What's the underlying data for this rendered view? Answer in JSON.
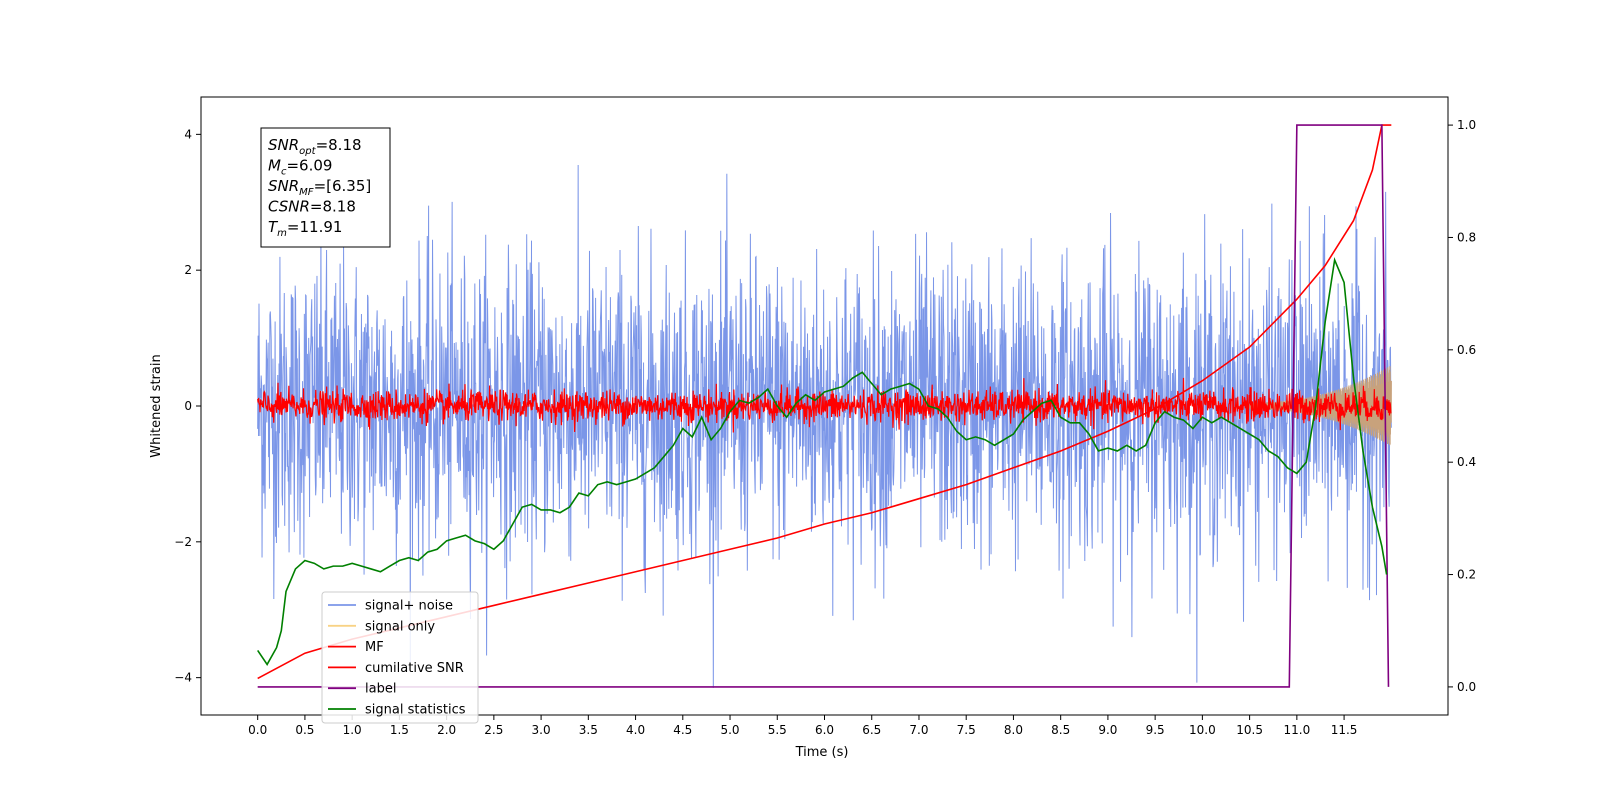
{
  "chart_data": {
    "type": "line",
    "title": "",
    "xlabel": "Time (s)",
    "ylabel": "Whitened strain",
    "xlim": [
      -0.6,
      12.6
    ],
    "ylim": [
      -4.55,
      4.55
    ],
    "y2lim": [
      -0.05,
      1.05
    ],
    "x_ticks": [
      "0.0",
      "0.5",
      "1.0",
      "1.5",
      "2.0",
      "2.5",
      "3.0",
      "3.5",
      "4.0",
      "4.5",
      "5.0",
      "5.5",
      "6.0",
      "6.5",
      "7.0",
      "7.5",
      "8.0",
      "8.5",
      "9.0",
      "9.5",
      "10.0",
      "10.5",
      "11.0",
      "11.5"
    ],
    "y_ticks": [
      "−4",
      "−2",
      "0",
      "2",
      "4"
    ],
    "y2_ticks": [
      "0.0",
      "0.2",
      "0.4",
      "0.6",
      "0.8",
      "1.0"
    ],
    "grid": false,
    "legend_position": "lower-left",
    "annotation": {
      "lines": [
        {
          "sym": "SNR",
          "sub": "opt",
          "value": "=8.18"
        },
        {
          "sym": "M",
          "sub": "c",
          "value": "=6.09"
        },
        {
          "sym": "SNR",
          "sub": "MF",
          "value": "=[6.35]"
        },
        {
          "sym": "CSNR",
          "sub": "",
          "value": "=8.18"
        },
        {
          "sym": "T",
          "sub": "m",
          "value": "=11.91"
        }
      ]
    },
    "series": [
      {
        "name": "signal+ noise",
        "axis": "left",
        "color": "#7b96e8",
        "kind": "noise_band",
        "x_range": [
          0.0,
          12.0
        ],
        "envelope_typical": 2.6,
        "envelope_peak": 4.15
      },
      {
        "name": "signal only",
        "axis": "left",
        "color": "#f6c766",
        "overlap_color": "#c8a27c",
        "kind": "chirp",
        "x_range": [
          10.5,
          12.0
        ],
        "amplitude_start": 0.05,
        "amplitude_end": 0.6
      },
      {
        "name": "MF",
        "axis": "left",
        "color": "#ff0000",
        "kind": "noise_band",
        "x_range": [
          0.0,
          12.0
        ],
        "envelope_typical": 0.3,
        "envelope_peak": 0.6
      },
      {
        "name": "cumilative SNR",
        "axis": "right",
        "color": "#ff0000",
        "x": [
          0.0,
          0.5,
          1.0,
          1.5,
          2.0,
          2.5,
          3.0,
          3.5,
          4.0,
          4.5,
          5.0,
          5.5,
          6.0,
          6.5,
          7.0,
          7.5,
          8.0,
          8.5,
          9.0,
          9.5,
          10.0,
          10.5,
          11.0,
          11.3,
          11.6,
          11.8,
          11.9,
          12.0
        ],
        "y": [
          0.015,
          0.06,
          0.085,
          0.105,
          0.125,
          0.145,
          0.165,
          0.185,
          0.205,
          0.225,
          0.245,
          0.265,
          0.29,
          0.31,
          0.335,
          0.36,
          0.39,
          0.42,
          0.455,
          0.495,
          0.545,
          0.605,
          0.69,
          0.75,
          0.83,
          0.92,
          1.0,
          1.0
        ]
      },
      {
        "name": "label",
        "axis": "right",
        "color": "#800080",
        "x": [
          0.0,
          10.92,
          11.0,
          11.9,
          11.97
        ],
        "y": [
          0.0,
          0.0,
          1.0,
          1.0,
          0.0
        ]
      },
      {
        "name": "signal statistics",
        "axis": "right",
        "color": "#008000",
        "x": [
          0.0,
          0.1,
          0.2,
          0.25,
          0.3,
          0.4,
          0.5,
          0.6,
          0.7,
          0.8,
          0.9,
          1.0,
          1.1,
          1.2,
          1.3,
          1.4,
          1.5,
          1.6,
          1.7,
          1.8,
          1.9,
          2.0,
          2.1,
          2.2,
          2.3,
          2.4,
          2.5,
          2.6,
          2.7,
          2.8,
          2.9,
          3.0,
          3.1,
          3.2,
          3.3,
          3.4,
          3.5,
          3.6,
          3.7,
          3.8,
          3.9,
          4.0,
          4.1,
          4.2,
          4.3,
          4.4,
          4.5,
          4.6,
          4.7,
          4.8,
          4.9,
          5.0,
          5.1,
          5.2,
          5.3,
          5.4,
          5.5,
          5.6,
          5.7,
          5.8,
          5.9,
          6.0,
          6.1,
          6.2,
          6.3,
          6.4,
          6.5,
          6.6,
          6.7,
          6.8,
          6.9,
          7.0,
          7.1,
          7.2,
          7.3,
          7.4,
          7.5,
          7.6,
          7.7,
          7.8,
          7.9,
          8.0,
          8.1,
          8.2,
          8.3,
          8.4,
          8.5,
          8.6,
          8.7,
          8.8,
          8.9,
          9.0,
          9.1,
          9.2,
          9.3,
          9.4,
          9.5,
          9.6,
          9.7,
          9.8,
          9.9,
          10.0,
          10.1,
          10.2,
          10.3,
          10.4,
          10.5,
          10.6,
          10.7,
          10.8,
          10.9,
          11.0,
          11.1,
          11.2,
          11.3,
          11.4,
          11.5,
          11.6,
          11.7,
          11.8,
          11.9,
          11.95
        ],
        "y": [
          0.065,
          0.04,
          0.07,
          0.1,
          0.17,
          0.21,
          0.225,
          0.22,
          0.21,
          0.215,
          0.215,
          0.22,
          0.215,
          0.21,
          0.205,
          0.215,
          0.225,
          0.23,
          0.225,
          0.24,
          0.245,
          0.26,
          0.265,
          0.27,
          0.26,
          0.255,
          0.245,
          0.26,
          0.29,
          0.32,
          0.325,
          0.315,
          0.315,
          0.31,
          0.32,
          0.345,
          0.34,
          0.36,
          0.365,
          0.36,
          0.365,
          0.37,
          0.38,
          0.39,
          0.41,
          0.43,
          0.46,
          0.445,
          0.48,
          0.44,
          0.46,
          0.49,
          0.51,
          0.505,
          0.515,
          0.53,
          0.5,
          0.48,
          0.505,
          0.52,
          0.51,
          0.525,
          0.53,
          0.535,
          0.55,
          0.56,
          0.54,
          0.52,
          0.53,
          0.535,
          0.54,
          0.53,
          0.5,
          0.495,
          0.48,
          0.455,
          0.44,
          0.445,
          0.44,
          0.43,
          0.44,
          0.45,
          0.475,
          0.49,
          0.505,
          0.51,
          0.48,
          0.47,
          0.47,
          0.45,
          0.42,
          0.425,
          0.42,
          0.43,
          0.42,
          0.43,
          0.47,
          0.49,
          0.48,
          0.475,
          0.46,
          0.48,
          0.47,
          0.48,
          0.47,
          0.46,
          0.45,
          0.44,
          0.42,
          0.41,
          0.39,
          0.38,
          0.4,
          0.5,
          0.65,
          0.76,
          0.72,
          0.55,
          0.42,
          0.32,
          0.25,
          0.2
        ]
      }
    ]
  }
}
